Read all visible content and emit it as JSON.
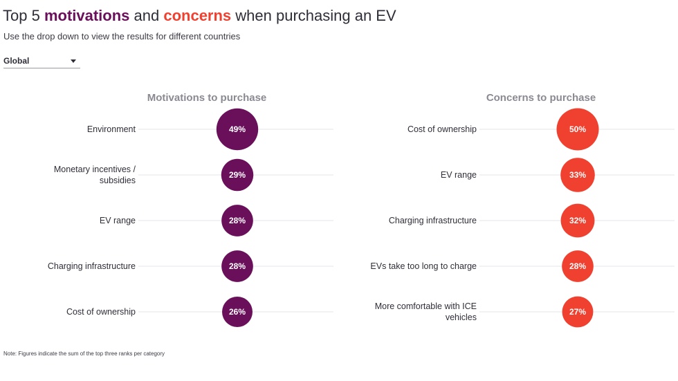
{
  "header": {
    "title_prefix": "Top 5 ",
    "title_motivations": "motivations",
    "title_and": " and ",
    "title_concerns": "concerns",
    "title_suffix": " when purchasing an EV",
    "subtitle": "Use the drop down to view the results for different countries"
  },
  "dropdown": {
    "selected": "Global"
  },
  "colors": {
    "motivations": "#6a0f5a",
    "concerns": "#f0402f",
    "gridline": "#e4e4e8",
    "heading": "#8a8a92"
  },
  "chart_data": [
    {
      "type": "bubble",
      "title": "Motivations to purchase",
      "categories": [
        "Environment",
        "Monetary incentives / subsidies",
        "EV range",
        "Charging infrastructure",
        "Cost of ownership"
      ],
      "values": [
        49,
        29,
        28,
        28,
        26
      ],
      "labels": [
        "49%",
        "29%",
        "28%",
        "28%",
        "26%"
      ],
      "unit": "%"
    },
    {
      "type": "bubble",
      "title": "Concerns to purchase",
      "categories": [
        "Cost of ownership",
        "EV range",
        "Charging infrastructure",
        "EVs take too long to charge",
        "More comfortable with ICE vehicles"
      ],
      "values": [
        50,
        33,
        32,
        28,
        27
      ],
      "labels": [
        "50%",
        "33%",
        "32%",
        "28%",
        "27%"
      ],
      "unit": "%"
    }
  ],
  "footer": {
    "note": "Note: Figures indicate the sum of the top three ranks per category"
  }
}
